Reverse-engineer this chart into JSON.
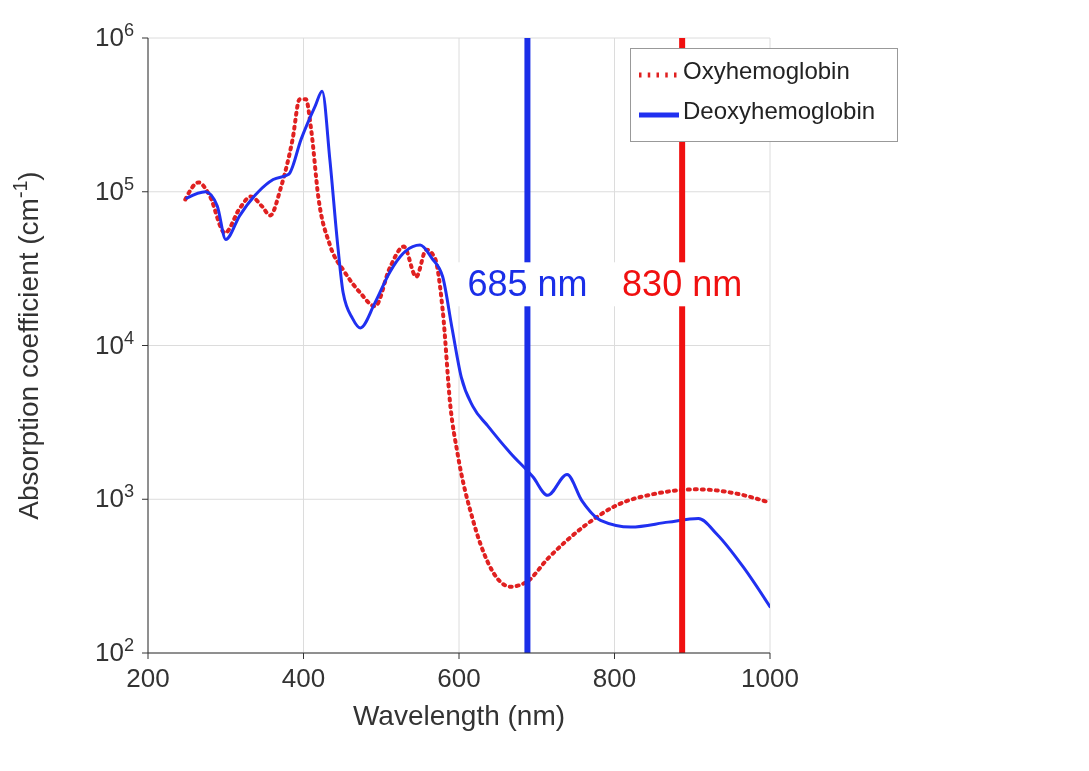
{
  "chart_data": {
    "type": "line",
    "xlabel": "Wavelength (nm)",
    "ylabel": "Absorption coefficient (cm$^{-1}$)",
    "log": "y",
    "grid": true,
    "legend": "top right",
    "marker": "none",
    "xlim": [
      200,
      1000
    ],
    "xticks": [
      200,
      400,
      600,
      800,
      1000
    ],
    "ylim": [
      100,
      1000000
    ],
    "yticks": [
      {
        "value": 100,
        "label": "10$^{2}$"
      },
      {
        "value": 1000,
        "label": "10$^{3}$"
      },
      {
        "value": 10000,
        "label": "10$^{4}$"
      },
      {
        "value": 100000,
        "label": "10$^{5}$"
      },
      {
        "value": 1000000,
        "label": "10$^{6}$"
      }
    ],
    "series": [
      {
        "name": "Oxyhemoglobin",
        "color": "#e02020",
        "line_style": "dotted",
        "x": [
          248,
          265,
          279,
          299,
          318,
          332,
          347,
          357,
          371,
          386,
          395,
          403,
          410,
          419,
          434,
          453,
          473,
          492,
          511,
          529,
          545,
          558,
          569,
          579,
          589,
          598,
          618,
          637,
          666,
          687,
          714,
          763,
          802,
          850,
          908,
          956,
          1000
        ],
        "values": [
          89000,
          115000,
          95000,
          54000,
          78000,
          93000,
          80000,
          70000,
          107000,
          220000,
          400000,
          400000,
          250000,
          93000,
          45000,
          30000,
          22000,
          18000,
          32000,
          44000,
          28000,
          42000,
          37000,
          17000,
          4000,
          2000,
          730,
          390,
          270,
          290,
          410,
          680,
          910,
          1080,
          1160,
          1090,
          950
        ]
      },
      {
        "name": "Deoxyhemoglobin",
        "color": "#2030f0",
        "line_style": "solid",
        "x": [
          250,
          274,
          289,
          300,
          318,
          342,
          361,
          381,
          397,
          415,
          424,
          434,
          444,
          451,
          463,
          473,
          492,
          511,
          531,
          550,
          565,
          579,
          591,
          603,
          618,
          637,
          666,
          695,
          714,
          739,
          758,
          782,
          821,
          869,
          908,
          932,
          966,
          1000
        ],
        "values": [
          91000,
          100000,
          81000,
          49000,
          70000,
          100000,
          120000,
          130000,
          220000,
          360000,
          450000,
          160000,
          45000,
          22000,
          15000,
          13000,
          19000,
          30000,
          41000,
          45000,
          37000,
          28000,
          13000,
          6200,
          4000,
          3000,
          2000,
          1400,
          1060,
          1450,
          980,
          730,
          660,
          710,
          750,
          590,
          360,
          200
        ]
      }
    ],
    "ref_lines": [
      {
        "axis": "x",
        "value": 688,
        "label": "685 nm",
        "color": "#1a2ee8"
      },
      {
        "axis": "x",
        "value": 887,
        "label": "830 nm",
        "color": "#f01010"
      }
    ]
  }
}
